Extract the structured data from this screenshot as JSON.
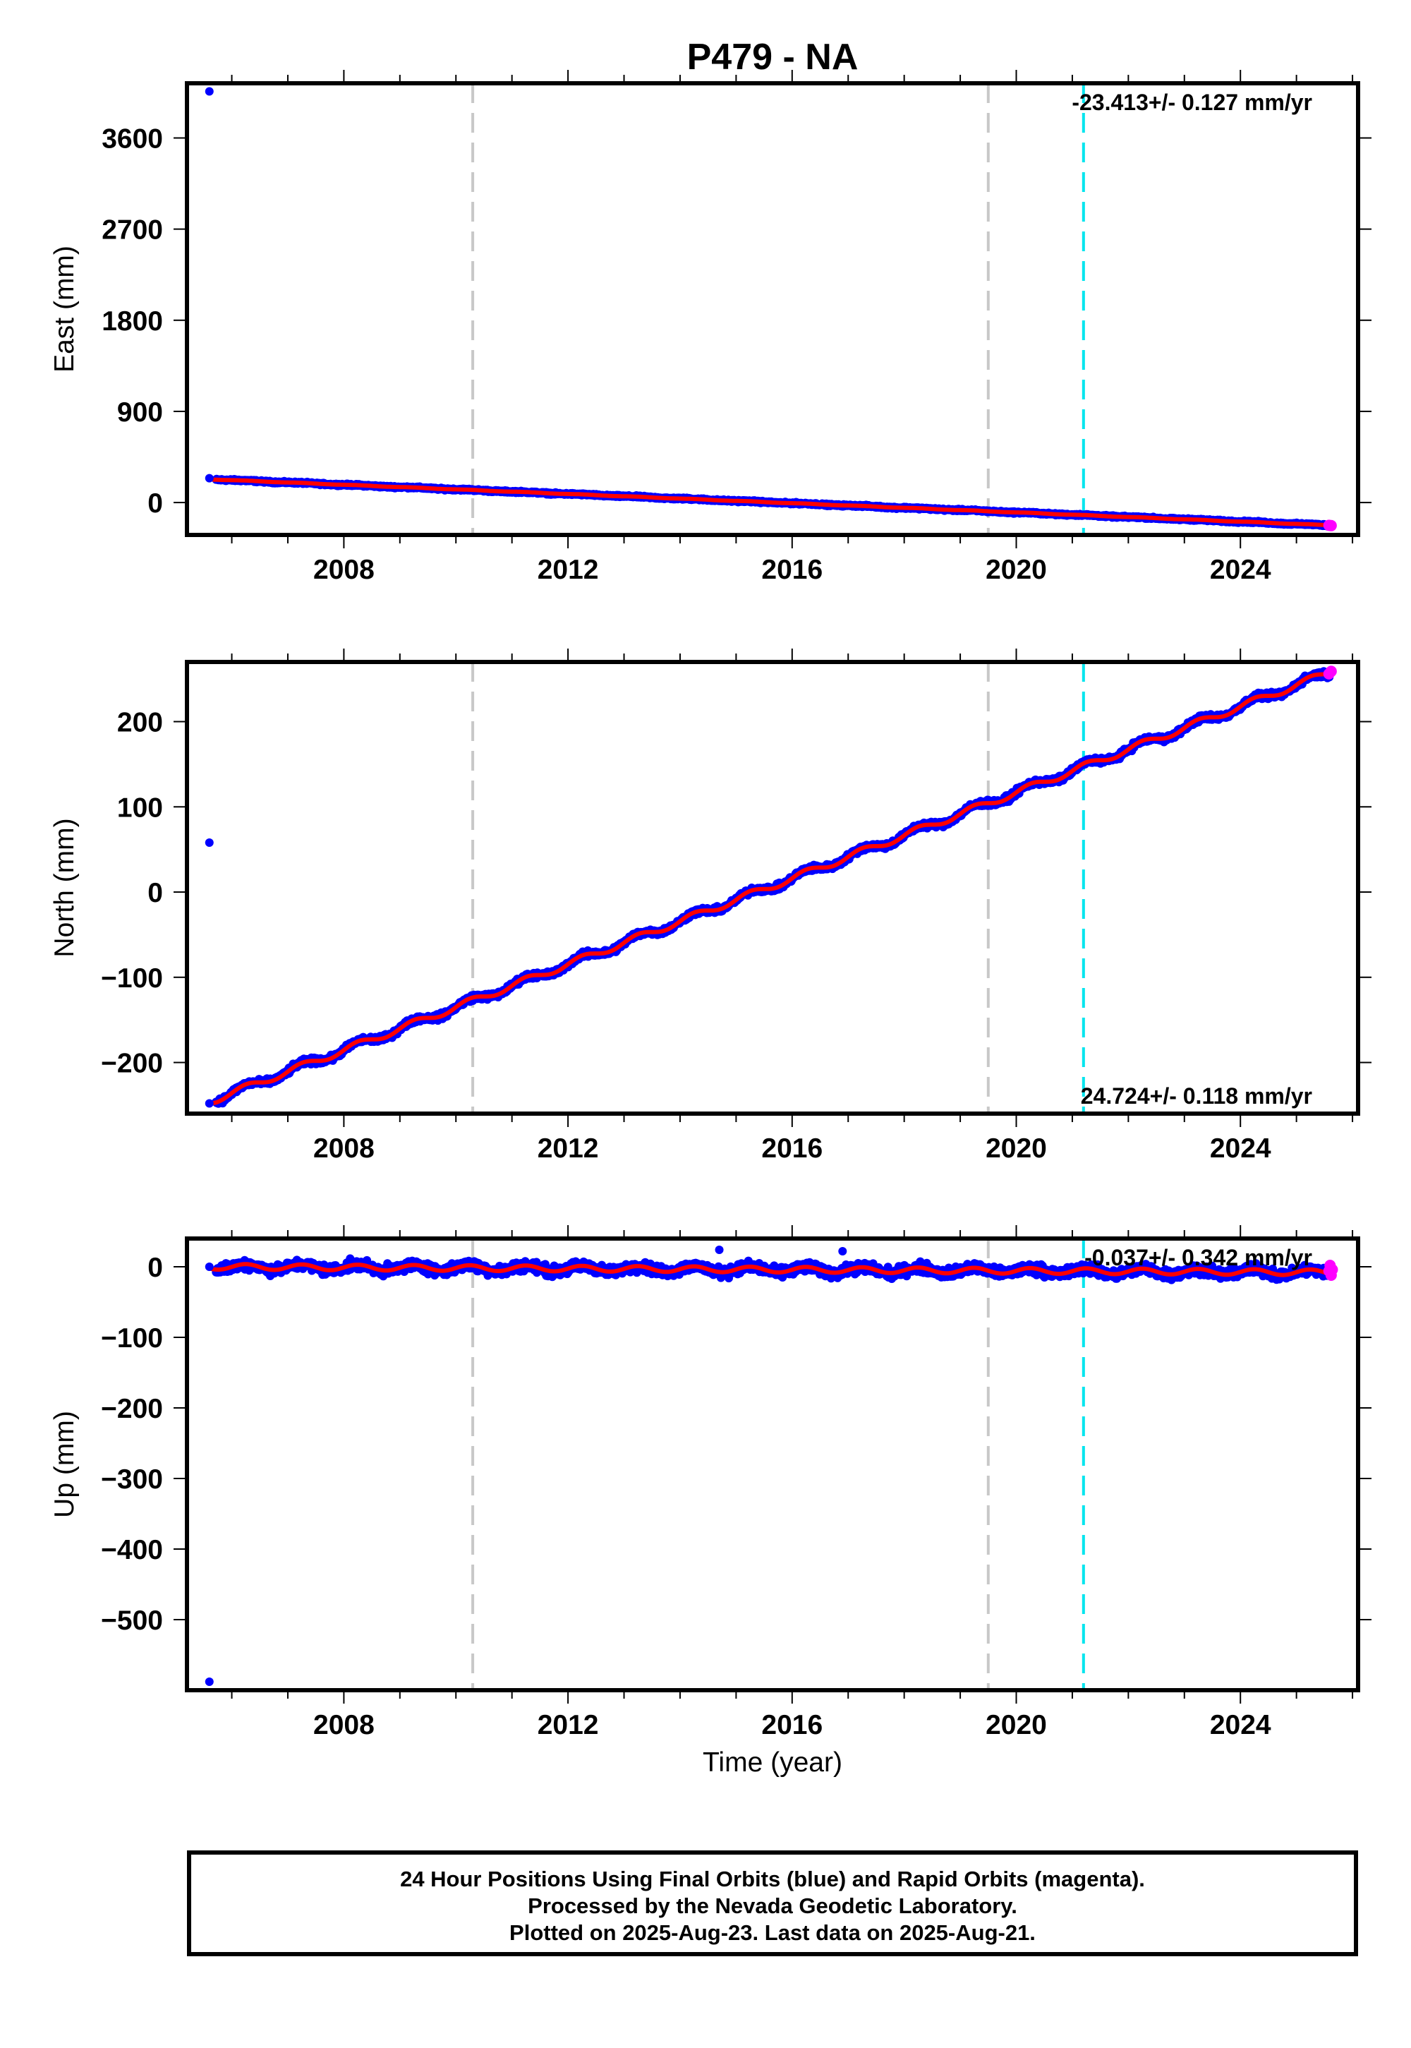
{
  "figure": {
    "title": "P479 - NA",
    "xlabel": "Time (year)"
  },
  "footer": {
    "line1": "24 Hour Positions Using Final Orbits (blue) and Rapid Orbits (magenta).",
    "line2": "Processed by the Nevada Geodetic Laboratory.",
    "line3": "Plotted on 2025-Aug-23. Last data on 2025-Aug-21."
  },
  "colors": {
    "final_orbits": "#0000ff",
    "rapid_orbits": "#ff00ff",
    "model_fit": "#ff0000",
    "equipment_change": "#c8c8c8",
    "earthquake": "#00e5ee"
  },
  "chart_data": [
    {
      "type": "scatter",
      "ylabel": "East (mm)",
      "xlim": [
        2005.2,
        2026.1
      ],
      "ylim": [
        -320,
        4140
      ],
      "xticks": [
        2008,
        2012,
        2016,
        2020,
        2024
      ],
      "yticks": [
        0,
        900,
        1800,
        2700,
        3600
      ],
      "rate_label": "-23.413+/- 0.127 mm/yr",
      "rate_label_position": "top-right",
      "vlines_gray": [
        2010.3,
        2019.5
      ],
      "vlines_cyan": [
        2021.2
      ],
      "start": [
        2005.6,
        230
      ],
      "end": [
        2025.6,
        -225
      ],
      "seasonal_amplitude": 2,
      "noise": 8,
      "outliers": [
        [
          2005.6,
          4060
        ],
        [
          2005.6,
          240
        ]
      ],
      "rapid_points": [
        [
          2025.58,
          -225
        ],
        [
          2025.62,
          -228
        ]
      ]
    },
    {
      "type": "scatter",
      "ylabel": "North (mm)",
      "xlim": [
        2005.2,
        2026.1
      ],
      "ylim": [
        -260,
        270
      ],
      "xticks": [
        2008,
        2012,
        2016,
        2020,
        2024
      ],
      "yticks": [
        -200,
        -100,
        0,
        100,
        200
      ],
      "rate_label": "24.724+/- 0.118 mm/yr",
      "rate_label_position": "bottom-right",
      "vlines_gray": [
        2010.3,
        2019.5
      ],
      "vlines_cyan": [
        2021.2
      ],
      "start": [
        2005.6,
        -246
      ],
      "end": [
        2025.6,
        258
      ],
      "seasonal_amplitude": 4,
      "noise": 3,
      "outliers": [
        [
          2005.6,
          58
        ],
        [
          2005.6,
          -248
        ]
      ],
      "rapid_points": [
        [
          2025.58,
          256
        ],
        [
          2025.62,
          259
        ]
      ]
    },
    {
      "type": "scatter",
      "ylabel": "Up (mm)",
      "xlim": [
        2005.2,
        2026.1
      ],
      "ylim": [
        -600,
        40
      ],
      "xticks": [
        2008,
        2012,
        2016,
        2020,
        2024
      ],
      "yticks": [
        -500,
        -400,
        -300,
        -200,
        -100,
        0
      ],
      "rate_label": "-0.037+/- 0.342 mm/yr",
      "rate_label_position": "top-right",
      "vlines_gray": [
        2010.3,
        2019.5
      ],
      "vlines_cyan": [
        2021.2
      ],
      "start": [
        2005.6,
        0
      ],
      "end": [
        2025.6,
        -8
      ],
      "seasonal_amplitude": 4,
      "noise": 6,
      "outliers": [
        [
          2005.6,
          -588
        ],
        [
          2005.6,
          0
        ],
        [
          2014.7,
          24
        ],
        [
          2016.9,
          22
        ]
      ],
      "rapid_points": [
        [
          2025.58,
          -6
        ],
        [
          2025.6,
          2
        ],
        [
          2025.62,
          -12
        ],
        [
          2025.64,
          -4
        ]
      ]
    }
  ]
}
